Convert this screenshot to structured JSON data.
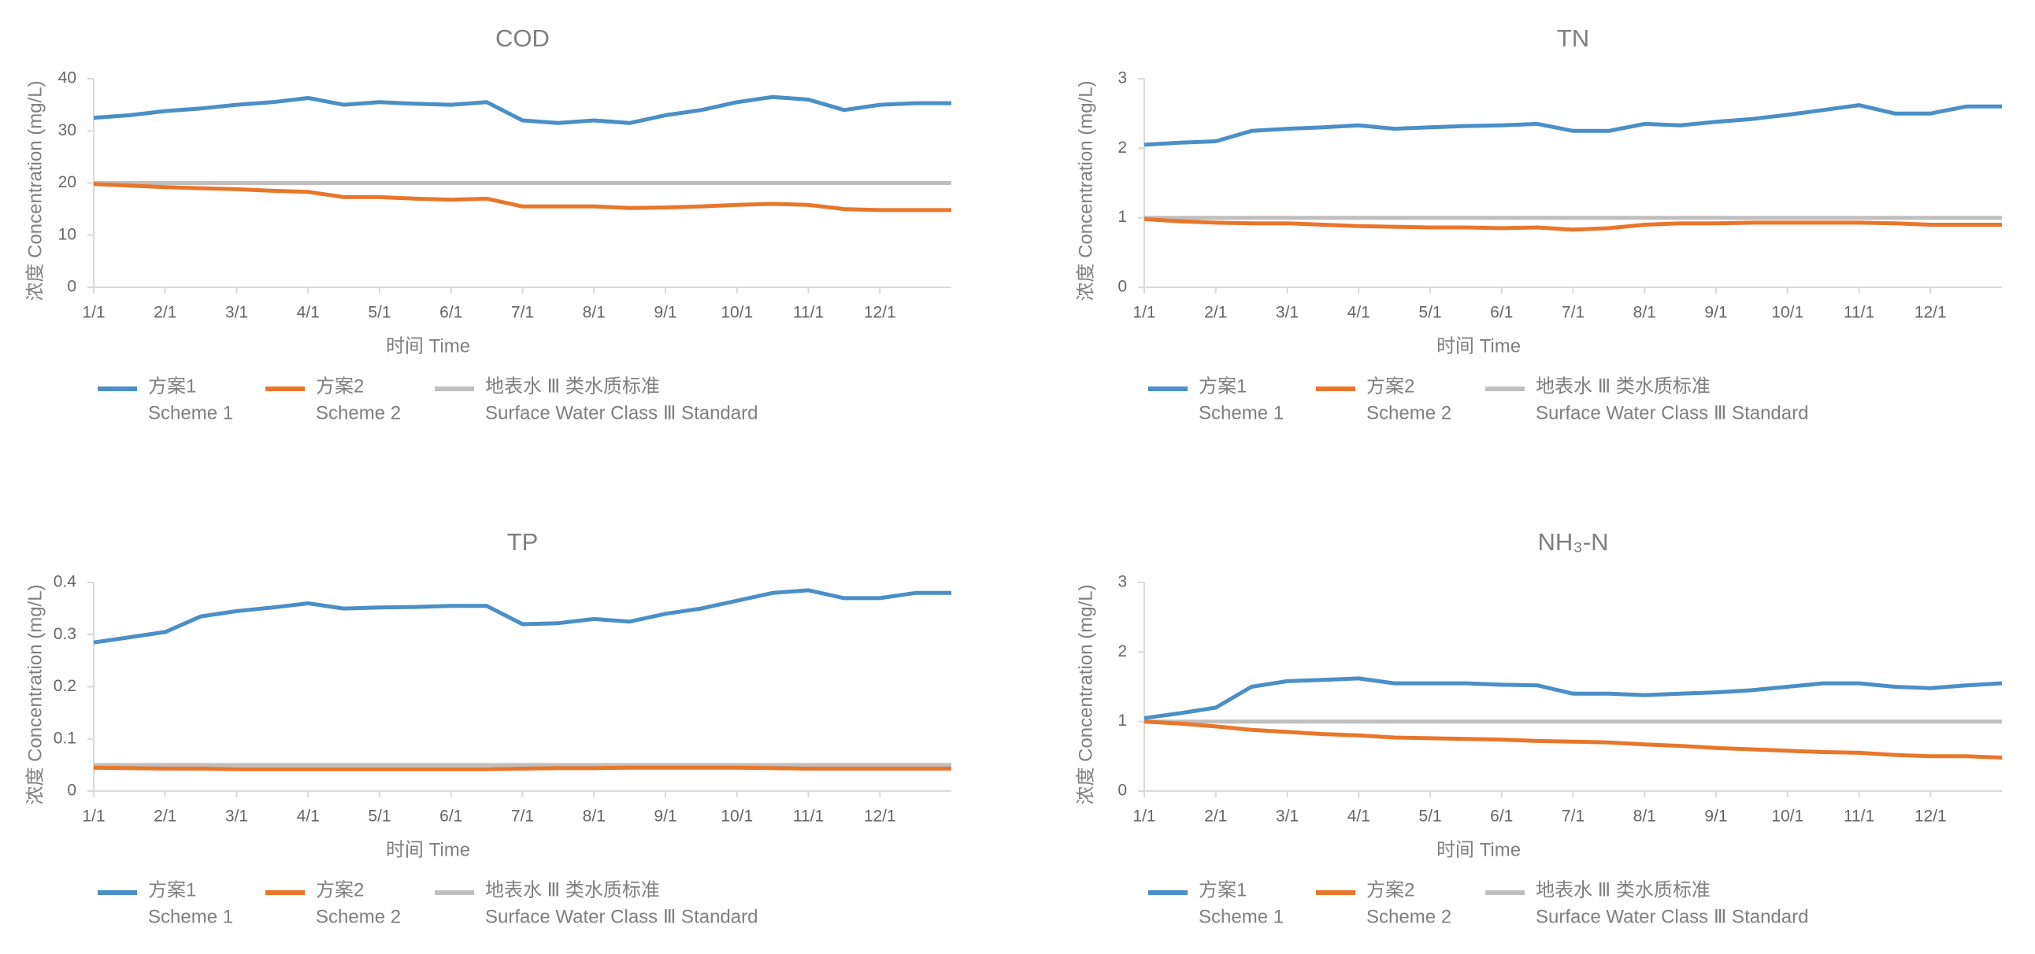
{
  "chart_data": [
    {
      "type": "line",
      "title": "COD",
      "x_label": "时间  Time",
      "y_label": "浓度  Concentration (mg/L)",
      "categories": [
        "1/1",
        null,
        "2/1",
        null,
        "3/1",
        null,
        "4/1",
        null,
        "5/1",
        null,
        "6/1",
        null,
        "7/1",
        null,
        "8/1",
        null,
        "9/1",
        null,
        "10/1",
        null,
        "11/1",
        null,
        "12/1",
        null,
        null
      ],
      "ylim": [
        0,
        40
      ],
      "yticks": [
        0,
        10,
        20,
        30,
        40
      ],
      "legend": "bottom",
      "series": [
        {
          "name": "方案1",
          "name_en": "Scheme 1",
          "color": "#4a8fc7",
          "values": [
            32.5,
            33,
            33.8,
            34.3,
            35,
            35.5,
            36.3,
            35,
            35.5,
            35.2,
            35,
            35.5,
            32,
            31.5,
            32,
            31.5,
            33,
            34,
            35.5,
            36.5,
            36,
            34,
            35,
            35.3,
            35.3
          ]
        },
        {
          "name": "方案2",
          "name_en": "Scheme 2",
          "color": "#e8762b",
          "values": [
            19.8,
            19.5,
            19.2,
            19,
            18.8,
            18.5,
            18.3,
            17.3,
            17.3,
            17,
            16.8,
            17,
            15.5,
            15.5,
            15.5,
            15.2,
            15.3,
            15.5,
            15.8,
            16,
            15.8,
            15,
            14.8,
            14.8,
            14.8
          ]
        },
        {
          "name": "地表水 Ⅲ 类水质标准",
          "name_en": "Surface Water Class Ⅲ Standard",
          "color": "#bfbfbf",
          "values": [
            20,
            20,
            20,
            20,
            20,
            20,
            20,
            20,
            20,
            20,
            20,
            20,
            20,
            20,
            20,
            20,
            20,
            20,
            20,
            20,
            20,
            20,
            20,
            20,
            20
          ]
        }
      ]
    },
    {
      "type": "line",
      "title": "TN",
      "x_label": "时间  Time",
      "y_label": "浓度  Concentration (mg/L)",
      "categories": [
        "1/1",
        null,
        "2/1",
        null,
        "3/1",
        null,
        "4/1",
        null,
        "5/1",
        null,
        "6/1",
        null,
        "7/1",
        null,
        "8/1",
        null,
        "9/1",
        null,
        "10/1",
        null,
        "11/1",
        null,
        "12/1",
        null,
        null
      ],
      "ylim": [
        0,
        3
      ],
      "yticks": [
        0,
        1,
        2,
        3
      ],
      "legend": "bottom",
      "series": [
        {
          "name": "方案1",
          "name_en": "Scheme 1",
          "color": "#4a8fc7",
          "values": [
            2.05,
            2.08,
            2.1,
            2.25,
            2.28,
            2.3,
            2.33,
            2.28,
            2.3,
            2.32,
            2.33,
            2.35,
            2.25,
            2.25,
            2.35,
            2.33,
            2.38,
            2.42,
            2.48,
            2.55,
            2.62,
            2.5,
            2.5,
            2.6,
            2.6
          ]
        },
        {
          "name": "方案2",
          "name_en": "Scheme 2",
          "color": "#e8762b",
          "values": [
            0.98,
            0.95,
            0.93,
            0.92,
            0.92,
            0.9,
            0.88,
            0.87,
            0.86,
            0.86,
            0.85,
            0.86,
            0.83,
            0.85,
            0.9,
            0.92,
            0.92,
            0.93,
            0.93,
            0.93,
            0.93,
            0.92,
            0.9,
            0.9,
            0.9
          ]
        },
        {
          "name": "地表水 Ⅲ 类水质标准",
          "name_en": "Surface Water Class Ⅲ Standard",
          "color": "#bfbfbf",
          "values": [
            1,
            1,
            1,
            1,
            1,
            1,
            1,
            1,
            1,
            1,
            1,
            1,
            1,
            1,
            1,
            1,
            1,
            1,
            1,
            1,
            1,
            1,
            1,
            1,
            1
          ]
        }
      ]
    },
    {
      "type": "line",
      "title": "TP",
      "x_label": "时间  Time",
      "y_label": "浓度  Concentration (mg/L)",
      "categories": [
        "1/1",
        null,
        "2/1",
        null,
        "3/1",
        null,
        "4/1",
        null,
        "5/1",
        null,
        "6/1",
        null,
        "7/1",
        null,
        "8/1",
        null,
        "9/1",
        null,
        "10/1",
        null,
        "11/1",
        null,
        "12/1",
        null,
        null
      ],
      "ylim": [
        0,
        0.4
      ],
      "yticks": [
        0,
        0.1,
        0.2,
        0.3,
        0.4
      ],
      "legend": "bottom",
      "series": [
        {
          "name": "方案1",
          "name_en": "Scheme 1",
          "color": "#4a8fc7",
          "values": [
            0.285,
            0.295,
            0.305,
            0.335,
            0.345,
            0.352,
            0.36,
            0.35,
            0.352,
            0.353,
            0.355,
            0.355,
            0.32,
            0.322,
            0.33,
            0.325,
            0.34,
            0.35,
            0.365,
            0.38,
            0.385,
            0.37,
            0.37,
            0.38,
            0.38
          ]
        },
        {
          "name": "方案2",
          "name_en": "Scheme 2",
          "color": "#e8762b",
          "values": [
            0.045,
            0.044,
            0.043,
            0.043,
            0.042,
            0.042,
            0.042,
            0.042,
            0.042,
            0.042,
            0.042,
            0.042,
            0.043,
            0.044,
            0.044,
            0.045,
            0.045,
            0.045,
            0.045,
            0.044,
            0.043,
            0.043,
            0.043,
            0.043,
            0.043
          ]
        },
        {
          "name": "地表水 Ⅲ 类水质标准",
          "name_en": "Surface Water Class Ⅲ Standard",
          "color": "#bfbfbf",
          "values": [
            0.05,
            0.05,
            0.05,
            0.05,
            0.05,
            0.05,
            0.05,
            0.05,
            0.05,
            0.05,
            0.05,
            0.05,
            0.05,
            0.05,
            0.05,
            0.05,
            0.05,
            0.05,
            0.05,
            0.05,
            0.05,
            0.05,
            0.05,
            0.05,
            0.05
          ]
        }
      ]
    },
    {
      "type": "line",
      "title": "NH₃-N",
      "x_label": "时间  Time",
      "y_label": "浓度  Concentration (mg/L)",
      "categories": [
        "1/1",
        null,
        "2/1",
        null,
        "3/1",
        null,
        "4/1",
        null,
        "5/1",
        null,
        "6/1",
        null,
        "7/1",
        null,
        "8/1",
        null,
        "9/1",
        null,
        "10/1",
        null,
        "11/1",
        null,
        "12/1",
        null,
        null
      ],
      "ylim": [
        0,
        3
      ],
      "yticks": [
        0,
        1,
        2,
        3
      ],
      "legend": "bottom",
      "series": [
        {
          "name": "方案1",
          "name_en": "Scheme 1",
          "color": "#4a8fc7",
          "values": [
            1.05,
            1.12,
            1.2,
            1.5,
            1.58,
            1.6,
            1.62,
            1.55,
            1.55,
            1.55,
            1.53,
            1.52,
            1.4,
            1.4,
            1.38,
            1.4,
            1.42,
            1.45,
            1.5,
            1.55,
            1.55,
            1.5,
            1.48,
            1.52,
            1.55
          ]
        },
        {
          "name": "方案2",
          "name_en": "Scheme 2",
          "color": "#e8762b",
          "values": [
            1.0,
            0.97,
            0.93,
            0.88,
            0.85,
            0.82,
            0.8,
            0.77,
            0.76,
            0.75,
            0.74,
            0.72,
            0.71,
            0.7,
            0.67,
            0.65,
            0.62,
            0.6,
            0.58,
            0.56,
            0.55,
            0.52,
            0.5,
            0.5,
            0.48
          ]
        },
        {
          "name": "地表水 Ⅲ 类水质标准",
          "name_en": "Surface Water Class Ⅲ Standard",
          "color": "#bfbfbf",
          "values": [
            1,
            1,
            1,
            1,
            1,
            1,
            1,
            1,
            1,
            1,
            1,
            1,
            1,
            1,
            1,
            1,
            1,
            1,
            1,
            1,
            1,
            1,
            1,
            1,
            1
          ]
        }
      ]
    }
  ]
}
